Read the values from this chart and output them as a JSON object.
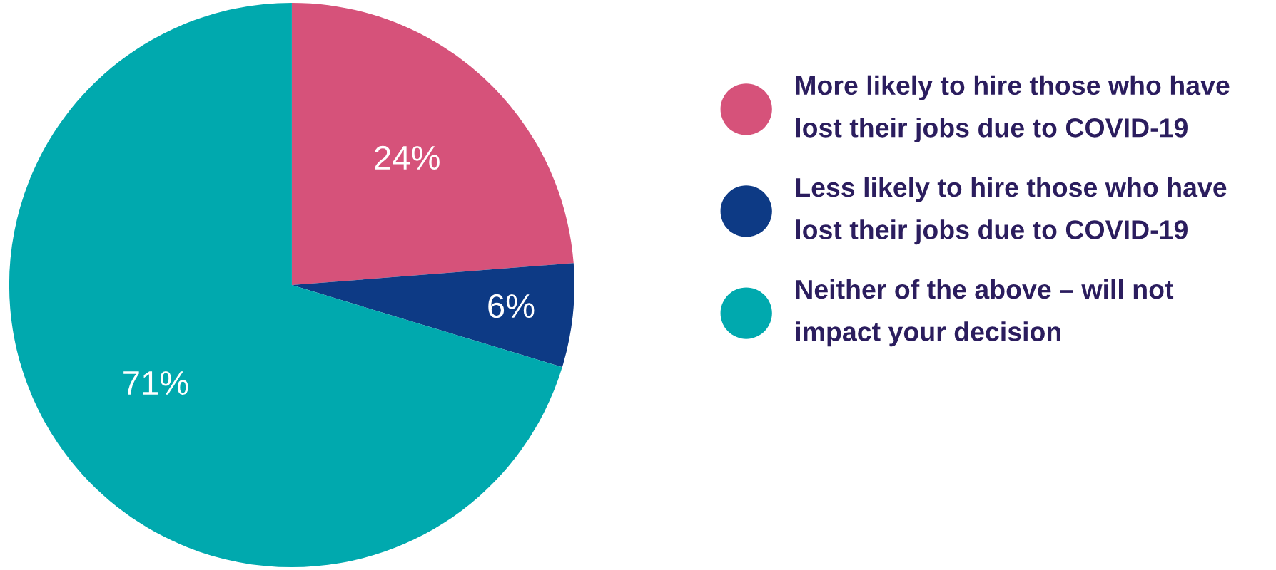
{
  "chart_data": {
    "type": "pie",
    "categories": [
      "More likely to hire those who have\nlost their jobs due to COVID-19",
      "Less likely to hire those who have\nlost their jobs due to COVID-19",
      "Neither of the above – will not\nimpact your decision"
    ],
    "values": [
      24,
      6,
      71
    ],
    "colors": [
      "#d6527a",
      "#0d3a85",
      "#00a9ae"
    ],
    "value_labels": [
      "24%",
      "6%",
      "71%"
    ],
    "legend": "right"
  }
}
